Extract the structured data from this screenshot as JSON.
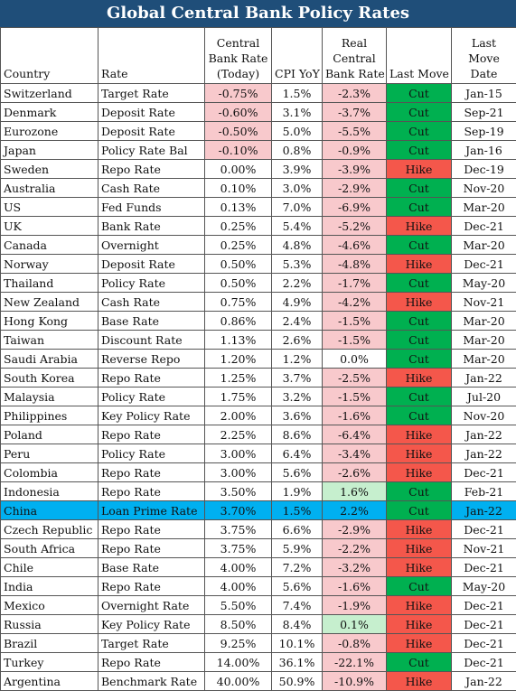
{
  "title": "Global Central Bank Policy Rates",
  "headers": {
    "country": "Country",
    "rate": "Rate",
    "cbr_line1": "Central",
    "cbr_line2": "Bank Rate",
    "cbr_line3": "(Today)",
    "cpi": "CPI YoY",
    "real_line1": "Real",
    "real_line2": "Central",
    "real_line3": "Bank Rate",
    "move": "Last Move",
    "date_line1": "Last",
    "date_line2": "Move",
    "date_line3": "Date"
  },
  "colors": {
    "title_bg": "#1f4e79",
    "negative_fill": "#f8c9cc",
    "positive_fill": "#c6efce",
    "cut": "#00b050",
    "hike": "#f4574b",
    "highlight_row": "#00b0f0"
  },
  "highlighted_country": "China",
  "rows": [
    [
      "Switzerland",
      "Target Rate",
      "-0.75%",
      "1.5%",
      "-2.3%",
      "Cut",
      "Jan-15"
    ],
    [
      "Denmark",
      "Deposit Rate",
      "-0.60%",
      "3.1%",
      "-3.7%",
      "Cut",
      "Sep-21"
    ],
    [
      "Eurozone",
      "Deposit Rate",
      "-0.50%",
      "5.0%",
      "-5.5%",
      "Cut",
      "Sep-19"
    ],
    [
      "Japan",
      "Policy Rate Bal",
      "-0.10%",
      "0.8%",
      "-0.9%",
      "Cut",
      "Jan-16"
    ],
    [
      "Sweden",
      "Repo Rate",
      "0.00%",
      "3.9%",
      "-3.9%",
      "Hike",
      "Dec-19"
    ],
    [
      "Australia",
      "Cash Rate",
      "0.10%",
      "3.0%",
      "-2.9%",
      "Cut",
      "Nov-20"
    ],
    [
      "US",
      "Fed Funds",
      "0.13%",
      "7.0%",
      "-6.9%",
      "Cut",
      "Mar-20"
    ],
    [
      "UK",
      "Bank Rate",
      "0.25%",
      "5.4%",
      "-5.2%",
      "Hike",
      "Dec-21"
    ],
    [
      "Canada",
      "Overnight",
      "0.25%",
      "4.8%",
      "-4.6%",
      "Cut",
      "Mar-20"
    ],
    [
      "Norway",
      "Deposit Rate",
      "0.50%",
      "5.3%",
      "-4.8%",
      "Hike",
      "Dec-21"
    ],
    [
      "Thailand",
      "Policy Rate",
      "0.50%",
      "2.2%",
      "-1.7%",
      "Cut",
      "May-20"
    ],
    [
      "New Zealand",
      "Cash Rate",
      "0.75%",
      "4.9%",
      "-4.2%",
      "Hike",
      "Nov-21"
    ],
    [
      "Hong Kong",
      "Base Rate",
      "0.86%",
      "2.4%",
      "-1.5%",
      "Cut",
      "Mar-20"
    ],
    [
      "Taiwan",
      "Discount Rate",
      "1.13%",
      "2.6%",
      "-1.5%",
      "Cut",
      "Mar-20"
    ],
    [
      "Saudi Arabia",
      "Reverse Repo",
      "1.20%",
      "1.2%",
      "0.0%",
      "Cut",
      "Mar-20"
    ],
    [
      "South Korea",
      "Repo Rate",
      "1.25%",
      "3.7%",
      "-2.5%",
      "Hike",
      "Jan-22"
    ],
    [
      "Malaysia",
      "Policy Rate",
      "1.75%",
      "3.2%",
      "-1.5%",
      "Cut",
      "Jul-20"
    ],
    [
      "Philippines",
      "Key Policy Rate",
      "2.00%",
      "3.6%",
      "-1.6%",
      "Cut",
      "Nov-20"
    ],
    [
      "Poland",
      "Repo Rate",
      "2.25%",
      "8.6%",
      "-6.4%",
      "Hike",
      "Jan-22"
    ],
    [
      "Peru",
      "Policy Rate",
      "3.00%",
      "6.4%",
      "-3.4%",
      "Hike",
      "Jan-22"
    ],
    [
      "Colombia",
      "Repo Rate",
      "3.00%",
      "5.6%",
      "-2.6%",
      "Hike",
      "Dec-21"
    ],
    [
      "Indonesia",
      "Repo Rate",
      "3.50%",
      "1.9%",
      "1.6%",
      "Cut",
      "Feb-21"
    ],
    [
      "China",
      "Loan Prime Rate",
      "3.70%",
      "1.5%",
      "2.2%",
      "Cut",
      "Jan-22"
    ],
    [
      "Czech Republic",
      "Repo Rate",
      "3.75%",
      "6.6%",
      "-2.9%",
      "Hike",
      "Dec-21"
    ],
    [
      "South Africa",
      "Repo Rate",
      "3.75%",
      "5.9%",
      "-2.2%",
      "Hike",
      "Nov-21"
    ],
    [
      "Chile",
      "Base Rate",
      "4.00%",
      "7.2%",
      "-3.2%",
      "Hike",
      "Dec-21"
    ],
    [
      "India",
      "Repo Rate",
      "4.00%",
      "5.6%",
      "-1.6%",
      "Cut",
      "May-20"
    ],
    [
      "Mexico",
      "Overnight Rate",
      "5.50%",
      "7.4%",
      "-1.9%",
      "Hike",
      "Dec-21"
    ],
    [
      "Russia",
      "Key Policy Rate",
      "8.50%",
      "8.4%",
      "0.1%",
      "Hike",
      "Dec-21"
    ],
    [
      "Brazil",
      "Target Rate",
      "9.25%",
      "10.1%",
      "-0.8%",
      "Hike",
      "Dec-21"
    ],
    [
      "Turkey",
      "Repo Rate",
      "14.00%",
      "36.1%",
      "-22.1%",
      "Cut",
      "Dec-21"
    ],
    [
      "Argentina",
      "Benchmark Rate",
      "40.00%",
      "50.9%",
      "-10.9%",
      "Hike",
      "Jan-22"
    ]
  ]
}
